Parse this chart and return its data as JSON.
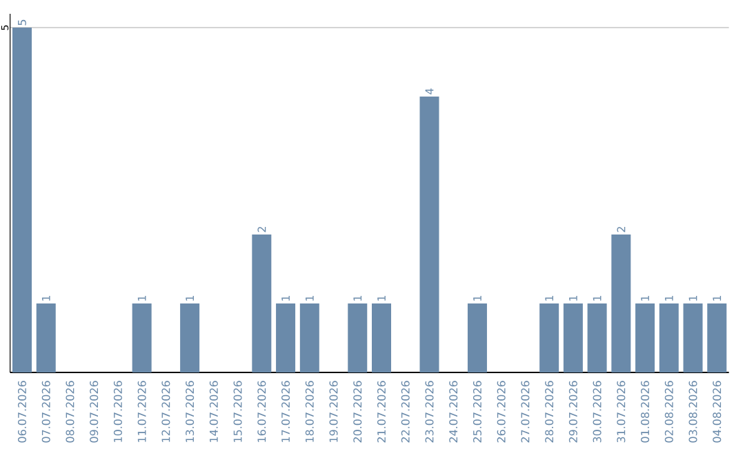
{
  "chart_data": {
    "type": "bar",
    "categories": [
      "06.07.2026",
      "07.07.2026",
      "08.07.2026",
      "09.07.2026",
      "10.07.2026",
      "11.07.2026",
      "12.07.2026",
      "13.07.2026",
      "14.07.2026",
      "15.07.2026",
      "16.07.2026",
      "17.07.2026",
      "18.07.2026",
      "19.07.2026",
      "20.07.2026",
      "21.07.2026",
      "22.07.2026",
      "23.07.2026",
      "24.07.2026",
      "25.07.2026",
      "26.07.2026",
      "27.07.2026",
      "28.07.2026",
      "29.07.2026",
      "30.07.2026",
      "31.07.2026",
      "01.08.2026",
      "02.08.2026",
      "03.08.2026",
      "04.08.2026"
    ],
    "values": [
      5,
      1,
      0,
      0,
      0,
      1,
      0,
      1,
      0,
      0,
      2,
      1,
      1,
      0,
      1,
      1,
      0,
      4,
      0,
      1,
      0,
      0,
      1,
      1,
      1,
      2,
      1,
      1,
      1,
      1
    ],
    "value_labels": [
      "5",
      "1",
      null,
      null,
      null,
      "1",
      null,
      "1",
      null,
      null,
      "2",
      "1",
      "1",
      null,
      "1",
      "1",
      null,
      "4",
      null,
      "1",
      null,
      null,
      "1",
      "1",
      "1",
      "2",
      "1",
      "1",
      "1",
      "1"
    ],
    "color": "#6a8aaa",
    "ylim": [
      0,
      5.2
    ],
    "yticks": [
      5
    ],
    "grid": "y"
  }
}
